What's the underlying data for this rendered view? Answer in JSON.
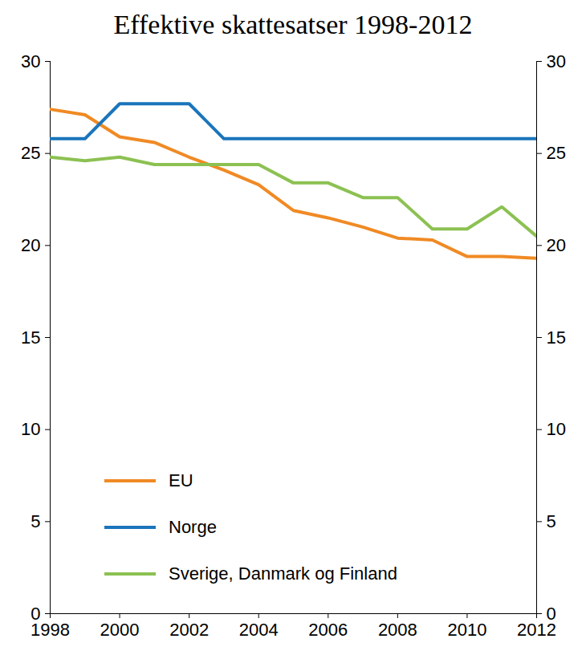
{
  "chart_data": {
    "type": "line",
    "title": "Effektive skattesatser 1998-2012",
    "x": [
      1998,
      1999,
      2000,
      2001,
      2002,
      2003,
      2004,
      2005,
      2006,
      2007,
      2008,
      2009,
      2010,
      2011,
      2012
    ],
    "series": [
      {
        "name": "EU",
        "color": "#f08a24",
        "values": [
          27.4,
          27.1,
          25.9,
          25.6,
          24.8,
          24.1,
          23.3,
          21.9,
          21.5,
          21.0,
          20.4,
          20.3,
          19.4,
          19.4,
          19.3
        ]
      },
      {
        "name": "Norge",
        "color": "#1a75bb",
        "values": [
          25.8,
          25.8,
          27.7,
          27.7,
          27.7,
          25.8,
          25.8,
          25.8,
          25.8,
          25.8,
          25.8,
          25.8,
          25.8,
          25.8,
          25.8
        ]
      },
      {
        "name": "Sverige, Danmark og Finland",
        "color": "#8cc152",
        "values": [
          24.8,
          24.6,
          24.8,
          24.4,
          24.4,
          24.4,
          24.4,
          23.4,
          23.4,
          22.6,
          22.6,
          20.9,
          20.9,
          22.1,
          20.5
        ]
      }
    ],
    "xlim": [
      1998,
      2012
    ],
    "xticks": [
      1998,
      2000,
      2002,
      2004,
      2006,
      2008,
      2010,
      2012
    ],
    "ylim": [
      0,
      30
    ],
    "yticks": [
      0,
      5,
      10,
      15,
      20,
      25,
      30
    ],
    "grid": false,
    "legend": "bottom-left"
  }
}
